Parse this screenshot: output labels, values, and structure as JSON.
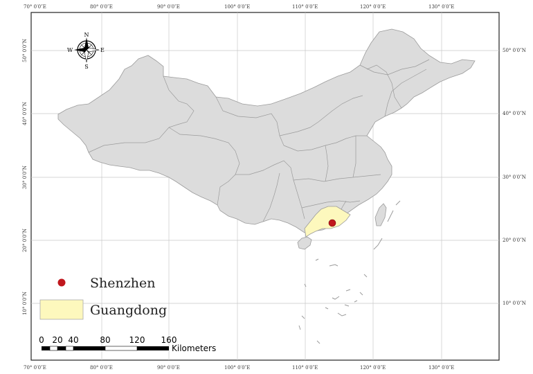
{
  "map": {
    "lon_ticks": [
      "70° 0′0″E",
      "80° 0′0″E",
      "90° 0′0″E",
      "100° 0′0″E",
      "110° 0′0″E",
      "120° 0′0″E",
      "130° 0′0″E"
    ],
    "lat_ticks": [
      "50° 0′0″N",
      "40° 0′0″N",
      "30° 0′0″N",
      "20° 0′0″N",
      "10° 0′0″N"
    ],
    "colors": {
      "land": "#dcdcdc",
      "border": "#9a9a9a",
      "highlight": "#fdf8bd",
      "point": "#c0171d",
      "grid": "#c8c8c8"
    }
  },
  "compass": {
    "n": "N",
    "s": "S",
    "e": "E",
    "w": "W"
  },
  "legend": {
    "point_label": "Shenzhen",
    "area_label": "Guangdong"
  },
  "scalebar": {
    "labels": [
      "0",
      "20",
      "40",
      "80",
      "120",
      "160"
    ],
    "unit": "Kilometers"
  }
}
